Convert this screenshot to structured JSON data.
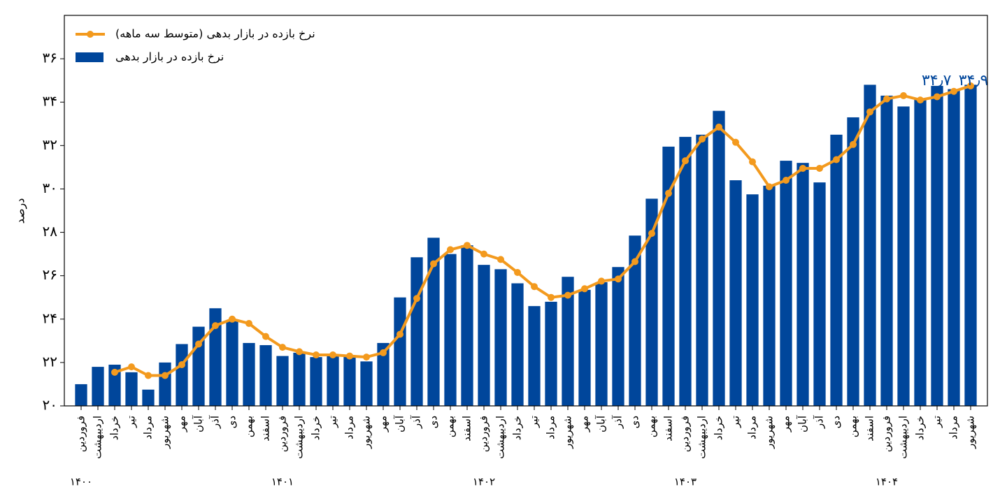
{
  "chart_data": {
    "type": "bar-line",
    "y_label": "درصد",
    "categories": [
      "فروردین",
      "اردیبهشت",
      "خرداد",
      "تیر",
      "مرداد",
      "شهریور",
      "مهر",
      "آبان",
      "آذر",
      "دی",
      "بهمن",
      "اسفند",
      "فروردین",
      "اردیبهشت",
      "خرداد",
      "تیر",
      "مرداد",
      "شهریور",
      "مهر",
      "آبان",
      "آذر",
      "دی",
      "بهمن",
      "اسفند",
      "فروردین",
      "اردیبهشت",
      "خرداد",
      "تیر",
      "مرداد",
      "شهریور",
      "مهر",
      "آبان",
      "آذر",
      "دی",
      "بهمن",
      "اسفند",
      "فروردین",
      "اردیبهشت",
      "خرداد",
      "تیر",
      "مرداد",
      "شهریور",
      "مهر",
      "آبان",
      "آذر",
      "دی",
      "بهمن",
      "اسفند",
      "فروردین",
      "اردیبهشت",
      "خرداد",
      "تیر",
      "مرداد",
      "شهریور"
    ],
    "year_labels": [
      "۱۴۰۰",
      "۱۴۰۱",
      "۱۴۰۲",
      "۱۴۰۳",
      "۱۴۰۴"
    ],
    "series": [
      {
        "name": "نرخ بازده در بازار بدهی",
        "type": "bar",
        "color": "#00469b",
        "values": [
          21.0,
          21.8,
          21.9,
          21.55,
          20.75,
          22.0,
          22.85,
          23.65,
          24.5,
          23.9,
          22.9,
          22.8,
          22.3,
          22.45,
          22.25,
          22.3,
          22.3,
          22.05,
          22.9,
          25.0,
          26.85,
          27.75,
          27.0,
          27.4,
          26.5,
          26.3,
          25.65,
          24.6,
          24.8,
          25.95,
          25.35,
          25.7,
          26.4,
          27.85,
          29.55,
          31.95,
          32.4,
          32.5,
          33.6,
          30.4,
          29.75,
          30.15,
          31.3,
          31.2,
          30.3,
          32.5,
          33.3,
          34.8,
          34.3,
          33.8,
          34.15,
          34.75,
          34.6,
          34.8
        ]
      },
      {
        "name": "نرخ بازده در بازار بدهی (متوسط سه ماهه)",
        "type": "line",
        "color": "#f39a1e",
        "values": [
          null,
          null,
          21.55,
          21.8,
          21.4,
          21.4,
          21.9,
          22.85,
          23.7,
          24.0,
          23.8,
          23.2,
          22.7,
          22.5,
          22.35,
          22.35,
          22.3,
          22.25,
          22.45,
          23.3,
          24.95,
          26.55,
          27.2,
          27.4,
          27.0,
          26.75,
          26.15,
          25.5,
          25.0,
          25.1,
          25.4,
          25.75,
          25.85,
          26.65,
          27.95,
          29.8,
          31.3,
          32.3,
          32.85,
          32.15,
          31.25,
          30.1,
          30.4,
          30.95,
          30.95,
          31.35,
          32.05,
          33.55,
          34.15,
          34.3,
          34.1,
          34.25,
          34.5,
          34.75
        ]
      }
    ],
    "annotations": [
      "۳۴٫۷",
      "۳۴٫۹"
    ],
    "annotation_color": "#00469b",
    "ylim": [
      20,
      38
    ],
    "yticks": [
      {
        "value": 20,
        "label": "۲۰"
      },
      {
        "value": 22,
        "label": "۲۲"
      },
      {
        "value": 24,
        "label": "۲۴"
      },
      {
        "value": 26,
        "label": "۲۶"
      },
      {
        "value": 28,
        "label": "۲۸"
      },
      {
        "value": 30,
        "label": "۳۰"
      },
      {
        "value": 32,
        "label": "۳۲"
      },
      {
        "value": 34,
        "label": "۳۴"
      },
      {
        "value": 36,
        "label": "۳۶"
      }
    ],
    "legend": "upper left"
  }
}
